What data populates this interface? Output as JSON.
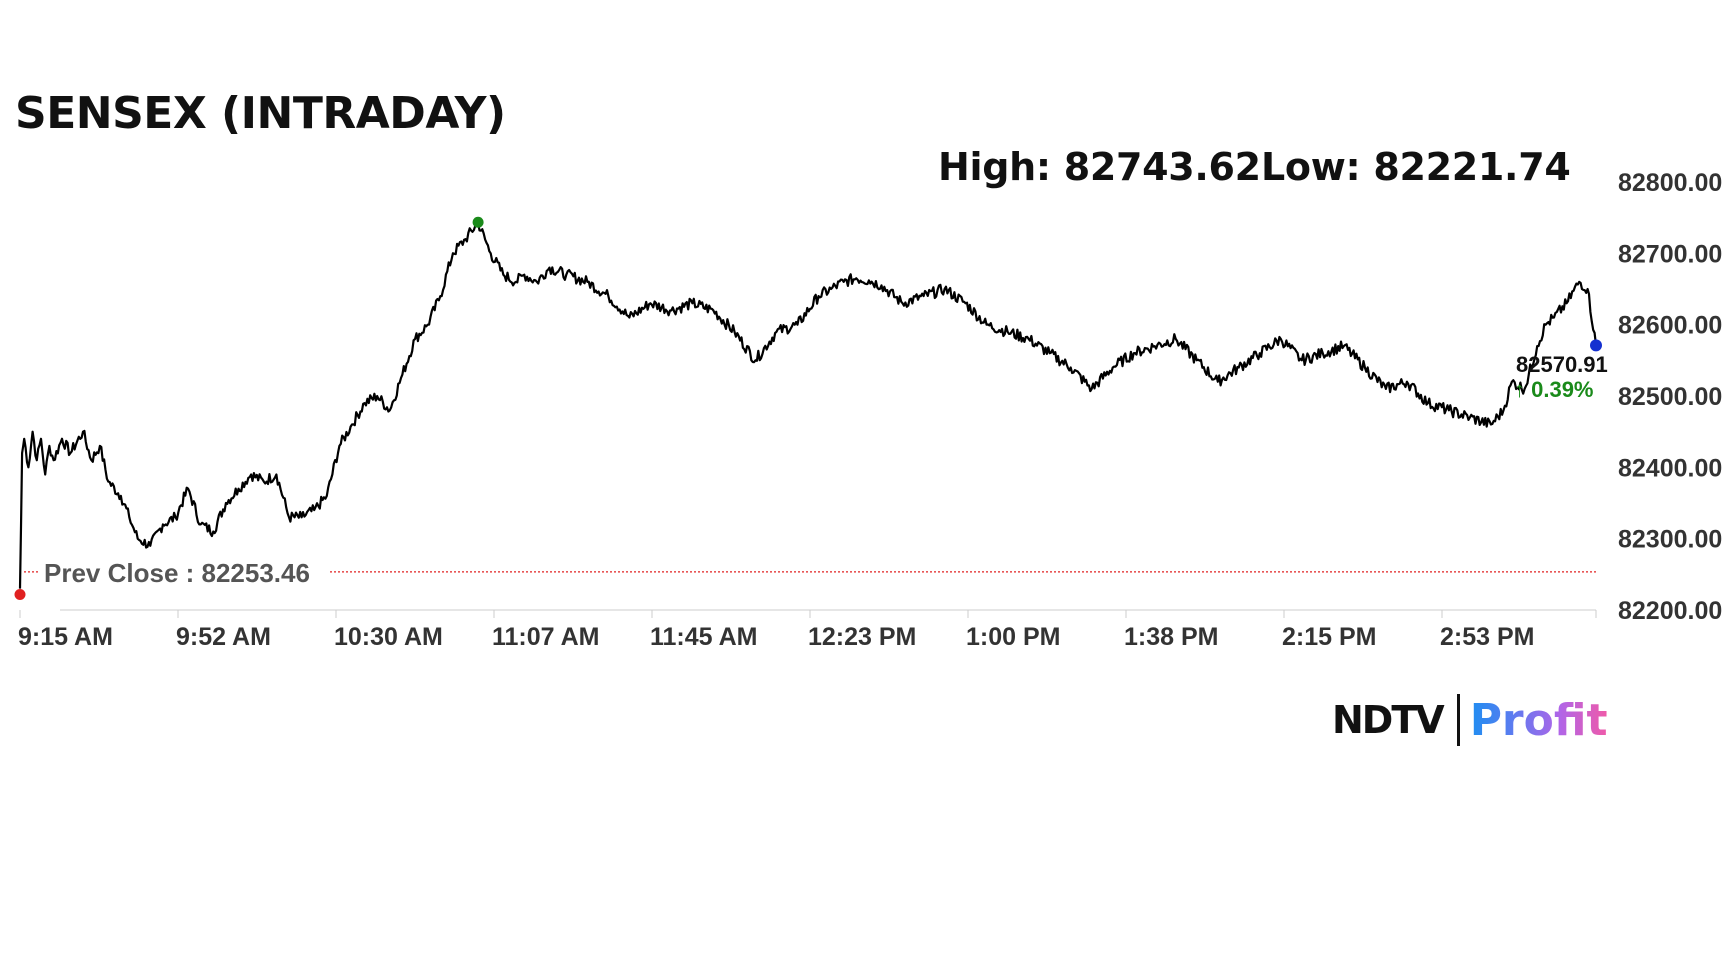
{
  "title": "SENSEX (INTRADAY)",
  "high_label": "High: 82743.62",
  "low_label": "Low: 82221.74",
  "logo": {
    "ndtv": "NDTV",
    "profit": "Profit"
  },
  "chart_data": {
    "type": "line",
    "title": "SENSEX (INTRADAY)",
    "x_tick_labels": [
      "9:15 AM",
      "9:52 AM",
      "10:30 AM",
      "11:07 AM",
      "11:45 AM",
      "12:23 PM",
      "1:00 PM",
      "1:38 PM",
      "2:15 PM",
      "2:53 PM"
    ],
    "y_tick_labels": [
      "82800.00",
      "82700.00",
      "82600.00",
      "82500.00",
      "82400.00",
      "82300.00",
      "82200.00"
    ],
    "ylim": [
      82200,
      82800
    ],
    "x_range_minutes_after_open": [
      0,
      375
    ],
    "prev_close_label": "Prev Close : 82253.46",
    "prev_close": 82253.46,
    "last_value_label": "82570.91",
    "change_label": "↑ 0.39%",
    "high": 82743.62,
    "low": 82221.74,
    "colors": {
      "line": "#000000",
      "prev_close": "#e02020",
      "high_marker": "#1a8a1a",
      "last_marker": "#1530d0",
      "change": "#1a8a1a",
      "axis": "#cccccc"
    },
    "series": [
      {
        "minutes": [
          0,
          0.5,
          1,
          2,
          3,
          4,
          5,
          6,
          7,
          8,
          10,
          12,
          15,
          17,
          19,
          21,
          24,
          26,
          28,
          31,
          34,
          37,
          40,
          43,
          46,
          49,
          52,
          55,
          58,
          61,
          64,
          67,
          70,
          73,
          76,
          79,
          82,
          85,
          88,
          91,
          94,
          97,
          100,
          103,
          106,
          109,
          112,
          115,
          118,
          120,
          123,
          126,
          130,
          135,
          140,
          145,
          150,
          155,
          160,
          165,
          170,
          175,
          180,
          185,
          190,
          193,
          196,
          199,
          202,
          205,
          210,
          215,
          220,
          225,
          230,
          235,
          240,
          245,
          250,
          255,
          260,
          265,
          270,
          275,
          280,
          285,
          290,
          295,
          300,
          305,
          310,
          315,
          320,
          325,
          330,
          335,
          340,
          345,
          350,
          353,
          355,
          358,
          361,
          363,
          365,
          368,
          371,
          373,
          375
        ],
        "values": [
          82230,
          82420,
          82440,
          82400,
          82450,
          82410,
          82440,
          82390,
          82430,
          82410,
          82440,
          82420,
          82450,
          82410,
          82430,
          82380,
          82360,
          82330,
          82300,
          82290,
          82320,
          82330,
          82370,
          82320,
          82310,
          82350,
          82370,
          82390,
          82380,
          82390,
          82330,
          82330,
          82340,
          82360,
          82430,
          82460,
          82490,
          82500,
          82480,
          82530,
          82580,
          82600,
          82640,
          82700,
          82720,
          82743,
          82700,
          82670,
          82660,
          82670,
          82660,
          82680,
          82670,
          82660,
          82640,
          82610,
          82630,
          82620,
          82630,
          82620,
          82590,
          82550,
          82590,
          82600,
          82640,
          82650,
          82660,
          82665,
          82662,
          82655,
          82630,
          82640,
          82650,
          82630,
          82600,
          82590,
          82580,
          82560,
          82540,
          82510,
          82540,
          82560,
          82570,
          82580,
          82550,
          82520,
          82540,
          82560,
          82580,
          82550,
          82560,
          82570,
          82540,
          82510,
          82520,
          82490,
          82480,
          82470,
          82460,
          82480,
          82520,
          82510,
          82570,
          82600,
          82610,
          82630,
          82660,
          82650,
          82571
        ]
      }
    ]
  }
}
